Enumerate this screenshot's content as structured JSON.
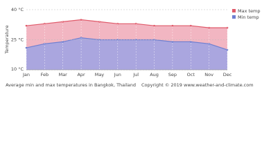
{
  "chart_data": {
    "type": "area",
    "y_label": "Temperature",
    "categories": [
      "Jan",
      "Feb",
      "Mar",
      "Apr",
      "May",
      "Jun",
      "Jul",
      "Aug",
      "Sep",
      "Oct",
      "Nov",
      "Dec"
    ],
    "series": [
      {
        "name": "Max temp",
        "color": "#e05a6a",
        "fill": "#f2b6c2",
        "values": [
          32,
          33,
          34,
          35,
          34,
          33,
          33,
          32,
          32,
          32,
          31,
          31
        ]
      },
      {
        "name": "Min temp",
        "color": "#6f7fd0",
        "fill": "#aaa6df",
        "values": [
          21,
          23,
          24,
          26,
          25,
          25,
          25,
          25,
          24,
          24,
          23,
          20
        ]
      }
    ],
    "ylim": [
      10,
      40
    ],
    "yticks": [
      {
        "value": 10,
        "label": "10 °C"
      },
      {
        "value": 25,
        "label": "25 °C"
      },
      {
        "value": 40,
        "label": "40 °C"
      }
    ],
    "grid": true,
    "legend": "top-right",
    "caption": "Average min and max temperatures in Bangkok, Thailand",
    "copyright": "Copyright © 2019 www.weather-and-climate.com"
  }
}
